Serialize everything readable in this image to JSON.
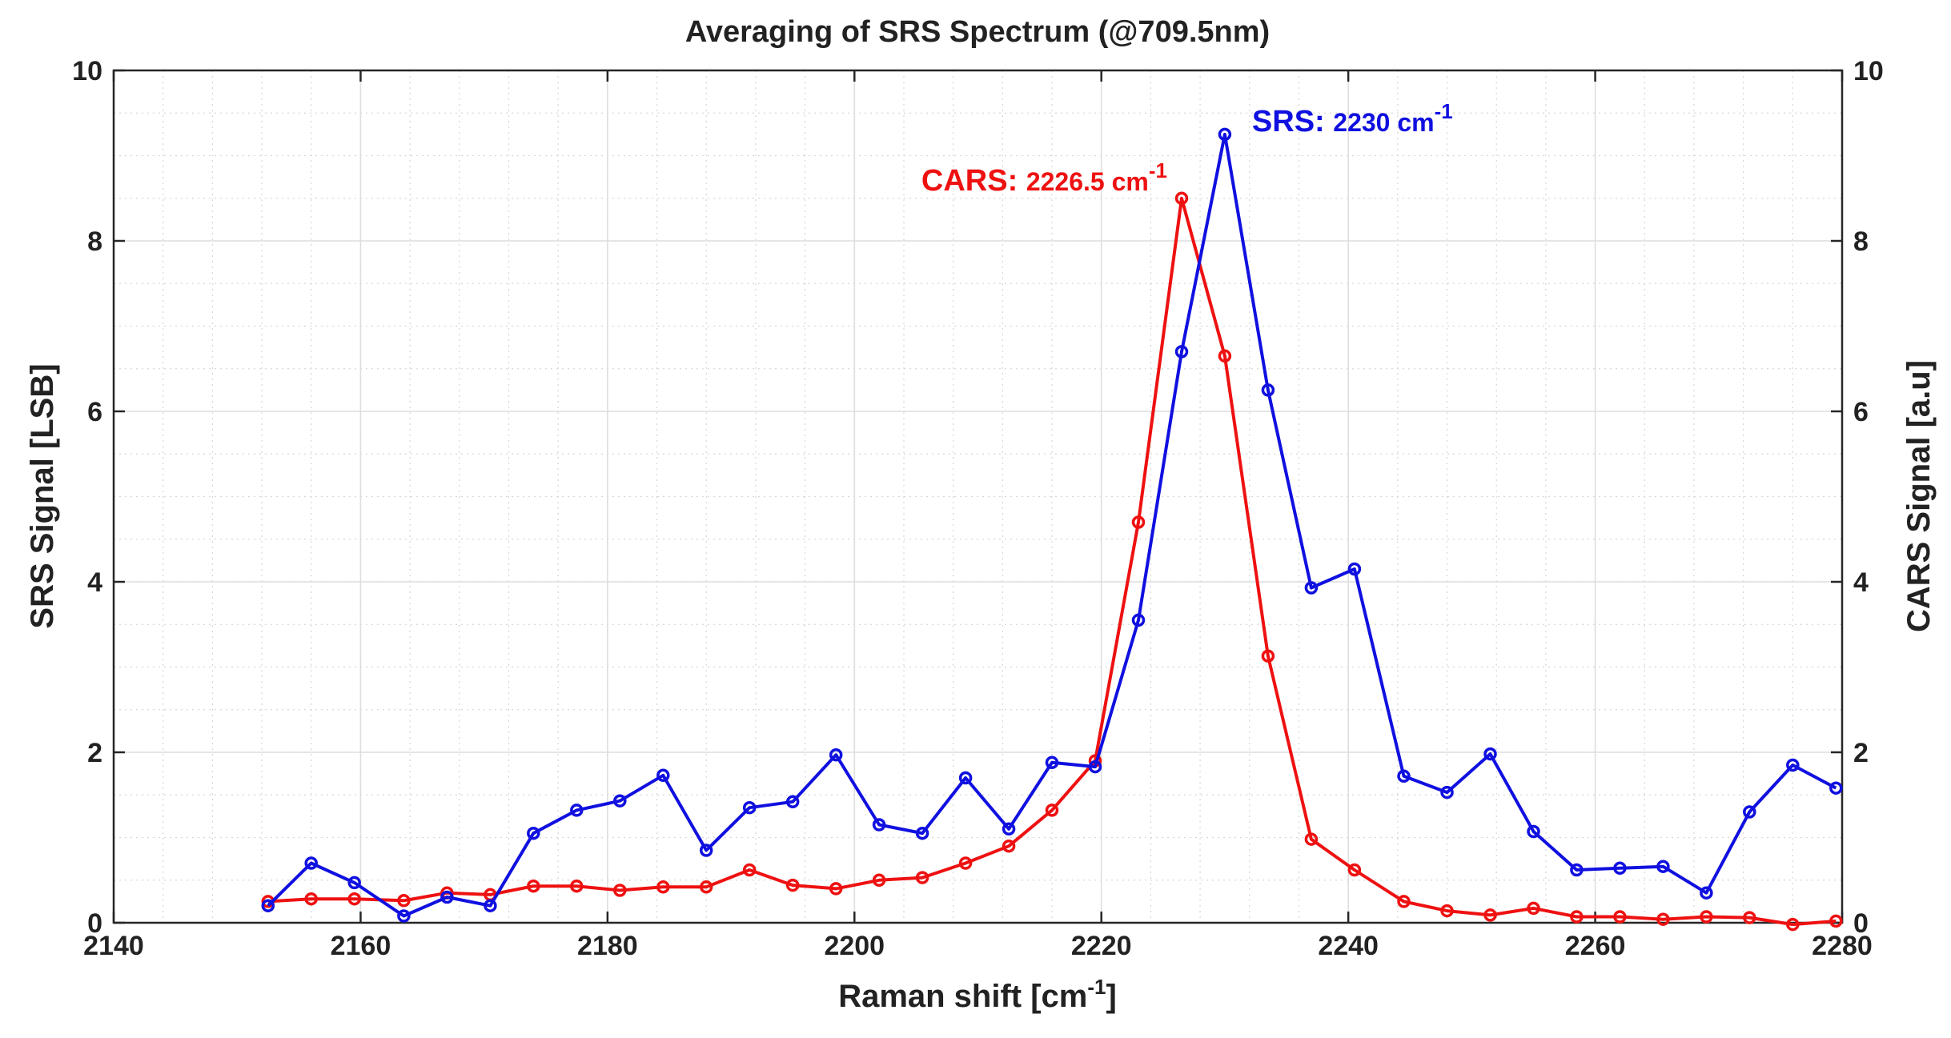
{
  "chart_data": {
    "type": "line",
    "title": "Averaging of SRS Spectrum (@709.5nm)",
    "xlabel": {
      "main": "Raman shift [cm",
      "sup": "-1",
      "end": "]"
    },
    "ylabel_left": "SRS Signal [LSB]",
    "ylabel_right": "CARS Signal [a.u]",
    "xlim": [
      2140,
      2280
    ],
    "ylim_left": [
      0,
      10
    ],
    "ylim_right": [
      0,
      10
    ],
    "x_ticks": [
      "2140",
      "2160",
      "2180",
      "2200",
      "2220",
      "2240",
      "2260",
      "2280"
    ],
    "y_ticks_left": [
      "0",
      "2",
      "4",
      "6",
      "8",
      "10"
    ],
    "y_ticks_right": [
      "0",
      "2",
      "4",
      "6",
      "8",
      "10"
    ],
    "grid": true,
    "series": [
      {
        "name": "SRS",
        "color": "#1010e0",
        "axis": "left",
        "x": [
          2152.5,
          2156,
          2159.5,
          2163.5,
          2167,
          2170.5,
          2174,
          2177.5,
          2181,
          2184.5,
          2188,
          2191.5,
          2195,
          2198.5,
          2202,
          2205.5,
          2209,
          2212.5,
          2216,
          2219.5,
          2223,
          2226.5,
          2230,
          2233.5,
          2237,
          2240.5,
          2244.5,
          2248,
          2251.5,
          2255,
          2258.5,
          2262,
          2265.5,
          2269,
          2272.5,
          2276,
          2279.5
        ],
        "values": [
          0.2,
          0.7,
          0.47,
          0.08,
          0.3,
          0.2,
          1.05,
          1.32,
          1.43,
          1.73,
          0.85,
          1.35,
          1.42,
          1.97,
          1.15,
          1.05,
          1.7,
          1.1,
          1.88,
          1.83,
          3.55,
          6.7,
          9.25,
          6.25,
          3.93,
          4.15,
          1.72,
          1.53,
          1.98,
          1.07,
          0.62,
          0.64,
          0.66,
          0.35,
          1.3,
          1.85,
          1.58
        ]
      },
      {
        "name": "CARS",
        "color": "#ee1111",
        "axis": "right",
        "x": [
          2152.5,
          2156,
          2159.5,
          2163.5,
          2167,
          2170.5,
          2174,
          2177.5,
          2181,
          2184.5,
          2188,
          2191.5,
          2195,
          2198.5,
          2202,
          2205.5,
          2209,
          2212.5,
          2216,
          2219.5,
          2223,
          2226.5,
          2230,
          2233.5,
          2237,
          2240.5,
          2244.5,
          2248,
          2251.5,
          2255,
          2258.5,
          2262,
          2265.5,
          2269,
          2272.5,
          2276,
          2279.5
        ],
        "values": [
          0.25,
          0.28,
          0.28,
          0.26,
          0.35,
          0.33,
          0.43,
          0.43,
          0.38,
          0.42,
          0.42,
          0.62,
          0.44,
          0.4,
          0.5,
          0.53,
          0.7,
          0.9,
          1.32,
          1.9,
          4.7,
          8.5,
          6.65,
          3.13,
          0.98,
          0.62,
          0.25,
          0.14,
          0.09,
          0.17,
          0.07,
          0.07,
          0.04,
          0.07,
          0.06,
          -0.02,
          0.02
        ]
      }
    ],
    "annotations": [
      {
        "series": "SRS",
        "prefix": "SRS: ",
        "value": "2230 cm",
        "sup": "-1",
        "x": 2230,
        "color": "#1010e0"
      },
      {
        "series": "CARS",
        "prefix": "CARS: ",
        "value": "2226.5 cm",
        "sup": "-1",
        "x": 2226.5,
        "color": "#ee1111"
      }
    ]
  }
}
